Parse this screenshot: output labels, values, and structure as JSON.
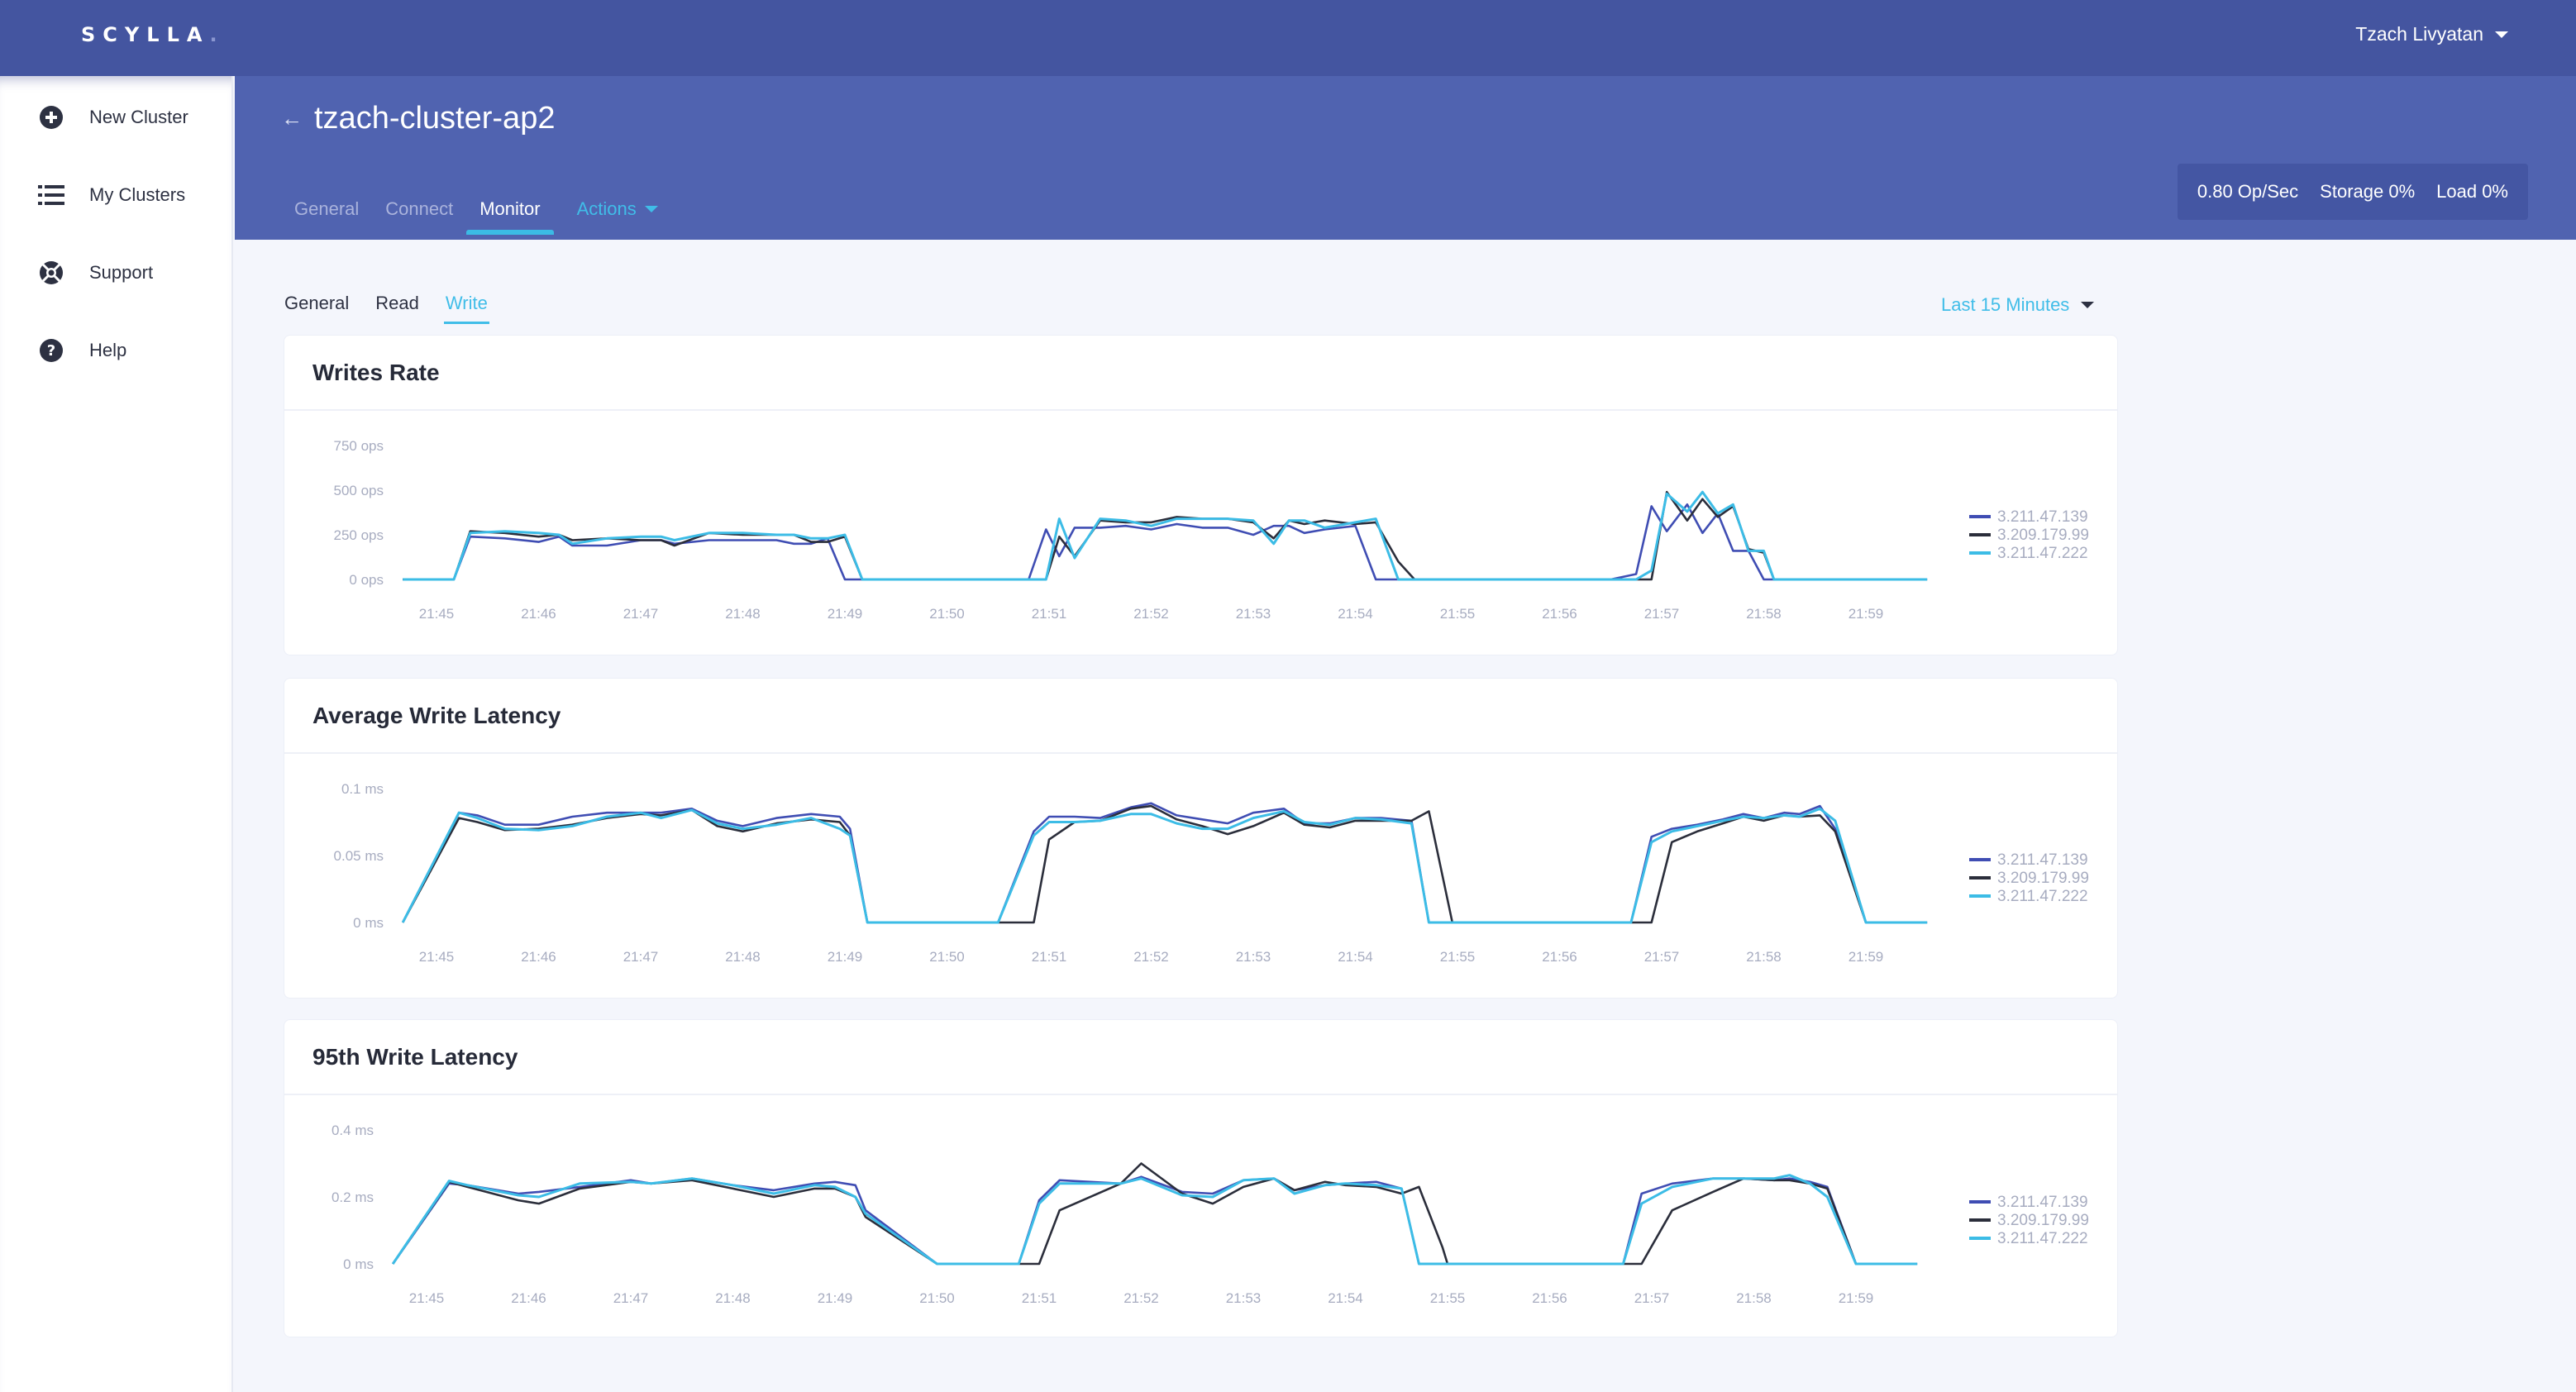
{
  "app": {
    "logo": "SCYLLA",
    "user_name": "Tzach Livyatan"
  },
  "sidebar": {
    "items": [
      {
        "label": "New Cluster",
        "icon": "plus-circle-icon"
      },
      {
        "label": "My Clusters",
        "icon": "list-icon"
      },
      {
        "label": "Support",
        "icon": "lifebuoy-icon"
      },
      {
        "label": "Help",
        "icon": "question-circle-icon"
      }
    ]
  },
  "header": {
    "back_icon": "arrow-left-icon",
    "cluster_name": "tzach-cluster-ap2",
    "tabs": [
      {
        "label": "General",
        "active": false
      },
      {
        "label": "Connect",
        "active": false
      },
      {
        "label": "Monitor",
        "active": true
      }
    ],
    "actions_label": "Actions",
    "stats": {
      "ops": "0.80 Op/Sec",
      "storage": "Storage 0%",
      "load": "Load 0%"
    }
  },
  "monitor": {
    "subtabs": [
      {
        "label": "General",
        "active": false
      },
      {
        "label": "Read",
        "active": false
      },
      {
        "label": "Write",
        "active": true
      }
    ],
    "time_range": "Last 15 Minutes"
  },
  "colors": {
    "series": [
      "#3f4db3",
      "#2b2e3b",
      "#3cbce6"
    ],
    "accent": "#40bde8",
    "topbar": "#4455a0",
    "subheader": "#5063b0"
  },
  "chart_data": [
    {
      "type": "line",
      "title": "Writes Rate",
      "xlabel": "",
      "ylabel": "",
      "ylim": [
        0,
        750
      ],
      "yticks": [
        0,
        250,
        500,
        750
      ],
      "ytick_labels": [
        "0 ops",
        "250 ops",
        "500 ops",
        "750 ops"
      ],
      "grid": false,
      "legend_position": "right",
      "x_tick_labels": [
        "21:45",
        "21:46",
        "21:47",
        "21:48",
        "21:49",
        "21:50",
        "21:51",
        "21:52",
        "21:53",
        "21:54",
        "21:55",
        "21:56",
        "21:57",
        "21:58",
        "21:59"
      ],
      "x": [
        -0.33,
        0.17,
        0.33,
        0.67,
        1.0,
        1.2,
        1.33,
        1.67,
        2.0,
        2.2,
        2.33,
        2.67,
        3.0,
        3.33,
        3.5,
        3.67,
        3.83,
        4.0,
        4.17,
        4.33,
        5.0,
        5.5,
        5.8,
        5.97,
        6.1,
        6.25,
        6.5,
        6.75,
        7.0,
        7.25,
        7.5,
        7.75,
        8.0,
        8.2,
        8.35,
        8.5,
        8.7,
        9.0,
        9.2,
        9.42,
        9.58,
        10.0,
        11.0,
        11.5,
        11.75,
        11.9,
        12.05,
        12.25,
        12.4,
        12.55,
        12.7,
        12.85,
        13.0,
        13.1,
        13.3,
        13.5,
        14.0,
        14.6
      ],
      "series": [
        {
          "name": "3.211.47.139",
          "values": [
            0,
            0,
            240,
            230,
            210,
            240,
            190,
            190,
            220,
            220,
            200,
            220,
            220,
            220,
            200,
            200,
            230,
            0,
            0,
            0,
            0,
            0,
            0,
            280,
            130,
            290,
            290,
            300,
            280,
            310,
            290,
            290,
            250,
            300,
            300,
            260,
            280,
            300,
            0,
            0,
            0,
            0,
            0,
            0,
            30,
            410,
            270,
            420,
            260,
            370,
            160,
            160,
            0,
            0,
            0,
            0,
            0,
            0
          ]
        },
        {
          "name": "3.209.179.99",
          "values": [
            0,
            0,
            270,
            260,
            240,
            250,
            220,
            230,
            220,
            220,
            190,
            260,
            250,
            250,
            250,
            210,
            210,
            240,
            0,
            0,
            0,
            0,
            0,
            0,
            240,
            130,
            330,
            320,
            320,
            350,
            340,
            340,
            320,
            230,
            330,
            310,
            330,
            310,
            320,
            100,
            0,
            0,
            0,
            0,
            0,
            0,
            490,
            330,
            450,
            350,
            410,
            170,
            150,
            0,
            0,
            0,
            0,
            0
          ]
        },
        {
          "name": "3.211.47.222",
          "values": [
            0,
            0,
            260,
            270,
            260,
            250,
            200,
            230,
            240,
            240,
            220,
            260,
            260,
            250,
            250,
            230,
            230,
            250,
            0,
            0,
            0,
            0,
            0,
            0,
            340,
            120,
            340,
            330,
            300,
            340,
            340,
            340,
            330,
            200,
            330,
            330,
            290,
            320,
            340,
            0,
            0,
            0,
            0,
            0,
            0,
            50,
            480,
            380,
            490,
            370,
            420,
            160,
            160,
            0,
            0,
            0,
            0,
            0
          ]
        }
      ]
    },
    {
      "type": "line",
      "title": "Average Write Latency",
      "xlabel": "",
      "ylabel": "",
      "ylim": [
        0,
        0.1
      ],
      "yticks": [
        0,
        0.05,
        0.1
      ],
      "ytick_labels": [
        "0 ms",
        "0.05 ms",
        "0.1 ms"
      ],
      "grid": false,
      "legend_position": "right",
      "x_tick_labels": [
        "21:45",
        "21:46",
        "21:47",
        "21:48",
        "21:49",
        "21:50",
        "21:51",
        "21:52",
        "21:53",
        "21:54",
        "21:55",
        "21:56",
        "21:57",
        "21:58",
        "21:59"
      ],
      "x": [
        -0.33,
        0.22,
        0.4,
        0.67,
        1.0,
        1.33,
        1.67,
        2.0,
        2.2,
        2.5,
        2.75,
        3.0,
        3.33,
        3.67,
        3.95,
        4.05,
        4.22,
        5.0,
        5.5,
        5.85,
        6.0,
        6.25,
        6.5,
        6.8,
        7.0,
        7.25,
        7.5,
        7.75,
        8.0,
        8.3,
        8.5,
        8.75,
        9.0,
        9.25,
        9.55,
        9.72,
        9.95,
        10.0,
        11.0,
        11.5,
        11.7,
        11.9,
        12.1,
        12.35,
        12.6,
        12.8,
        13.0,
        13.2,
        13.35,
        13.55,
        13.7,
        14.0,
        14.6
      ],
      "series": [
        {
          "name": "3.211.47.139",
          "values": [
            0,
            0.082,
            0.08,
            0.073,
            0.073,
            0.079,
            0.082,
            0.082,
            0.082,
            0.085,
            0.076,
            0.072,
            0.078,
            0.081,
            0.079,
            0.07,
            0,
            0,
            0,
            0.068,
            0.079,
            0.079,
            0.078,
            0.086,
            0.089,
            0.08,
            0.077,
            0.074,
            0.082,
            0.085,
            0.074,
            0.074,
            0.078,
            0.078,
            0.076,
            0,
            0,
            0,
            0,
            0,
            0,
            0.064,
            0.07,
            0.073,
            0.077,
            0.081,
            0.078,
            0.082,
            0.081,
            0.087,
            0.07,
            0,
            0
          ]
        },
        {
          "name": "3.209.179.99",
          "values": [
            0,
            0.078,
            0.075,
            0.069,
            0.07,
            0.073,
            0.078,
            0.081,
            0.08,
            0.084,
            0.072,
            0.068,
            0.074,
            0.077,
            0.075,
            0.065,
            0,
            0,
            0,
            0,
            0.062,
            0.075,
            0.076,
            0.085,
            0.087,
            0.077,
            0.072,
            0.066,
            0.072,
            0.082,
            0.073,
            0.071,
            0.076,
            0.076,
            0.076,
            0.083,
            0,
            0,
            0,
            0,
            0,
            0,
            0.06,
            0.068,
            0.074,
            0.079,
            0.076,
            0.08,
            0.079,
            0.08,
            0.068,
            0,
            0
          ]
        },
        {
          "name": "3.211.47.222",
          "values": [
            0,
            0.082,
            0.078,
            0.07,
            0.069,
            0.072,
            0.079,
            0.082,
            0.078,
            0.084,
            0.074,
            0.07,
            0.073,
            0.078,
            0.07,
            0.065,
            0,
            0,
            0,
            0.065,
            0.075,
            0.075,
            0.076,
            0.081,
            0.081,
            0.074,
            0.07,
            0.07,
            0.078,
            0.083,
            0.075,
            0.073,
            0.078,
            0.077,
            0.074,
            0,
            0,
            0,
            0,
            0,
            0,
            0.06,
            0.068,
            0.072,
            0.076,
            0.079,
            0.078,
            0.08,
            0.079,
            0.085,
            0.076,
            0,
            0
          ]
        }
      ]
    },
    {
      "type": "line",
      "title": "95th Write Latency",
      "xlabel": "",
      "ylabel": "",
      "ylim": [
        0,
        0.4
      ],
      "yticks": [
        0,
        0.2,
        0.4
      ],
      "ytick_labels": [
        "0 ms",
        "0.2 ms",
        "0.4 ms"
      ],
      "grid": false,
      "legend_position": "right",
      "x_tick_labels": [
        "21:45",
        "21:46",
        "21:47",
        "21:48",
        "21:49",
        "21:50",
        "21:51",
        "21:52",
        "21:53",
        "21:54",
        "21:55",
        "21:56",
        "21:57",
        "21:58",
        "21:59"
      ],
      "x": [
        -0.33,
        0.22,
        0.4,
        0.9,
        1.1,
        1.5,
        2.0,
        2.2,
        2.6,
        3.0,
        3.4,
        3.8,
        4.0,
        4.2,
        4.3,
        5.0,
        5.5,
        5.8,
        6.0,
        6.2,
        6.8,
        7.0,
        7.4,
        7.7,
        8.0,
        8.3,
        8.5,
        8.8,
        9.0,
        9.3,
        9.55,
        9.72,
        9.95,
        10.0,
        11.0,
        11.5,
        11.72,
        11.9,
        12.2,
        12.6,
        12.9,
        13.2,
        13.35,
        13.55,
        13.72,
        14.0,
        14.6
      ],
      "series": [
        {
          "name": "3.211.47.139",
          "values": [
            0,
            0.24,
            0.235,
            0.21,
            0.215,
            0.23,
            0.25,
            0.24,
            0.255,
            0.235,
            0.22,
            0.24,
            0.245,
            0.235,
            0.16,
            0,
            0,
            0,
            0.19,
            0.25,
            0.24,
            0.26,
            0.215,
            0.21,
            0.25,
            0.255,
            0.22,
            0.235,
            0.24,
            0.245,
            0.225,
            0,
            0,
            0,
            0,
            0,
            0,
            0.21,
            0.24,
            0.255,
            0.255,
            0.25,
            0.255,
            0.245,
            0.23,
            0,
            0
          ]
        },
        {
          "name": "3.209.179.99",
          "values": [
            0,
            0.245,
            0.23,
            0.19,
            0.18,
            0.225,
            0.245,
            0.24,
            0.25,
            0.225,
            0.2,
            0.225,
            0.225,
            0.2,
            0.14,
            0,
            0,
            0,
            0,
            0.16,
            0.24,
            0.3,
            0.21,
            0.18,
            0.23,
            0.255,
            0.22,
            0.245,
            0.235,
            0.23,
            0.21,
            0.23,
            0.05,
            0,
            0,
            0,
            0,
            0,
            0.16,
            0.215,
            0.255,
            0.25,
            0.25,
            0.24,
            0.225,
            0,
            0
          ]
        },
        {
          "name": "3.211.47.222",
          "values": [
            0,
            0.248,
            0.235,
            0.205,
            0.2,
            0.24,
            0.245,
            0.24,
            0.255,
            0.235,
            0.21,
            0.235,
            0.23,
            0.2,
            0.15,
            0,
            0,
            0,
            0.18,
            0.24,
            0.24,
            0.255,
            0.205,
            0.2,
            0.25,
            0.255,
            0.21,
            0.235,
            0.24,
            0.235,
            0.225,
            0,
            0,
            0,
            0,
            0,
            0,
            0.18,
            0.23,
            0.255,
            0.255,
            0.255,
            0.265,
            0.24,
            0.2,
            0,
            0
          ]
        }
      ]
    }
  ]
}
